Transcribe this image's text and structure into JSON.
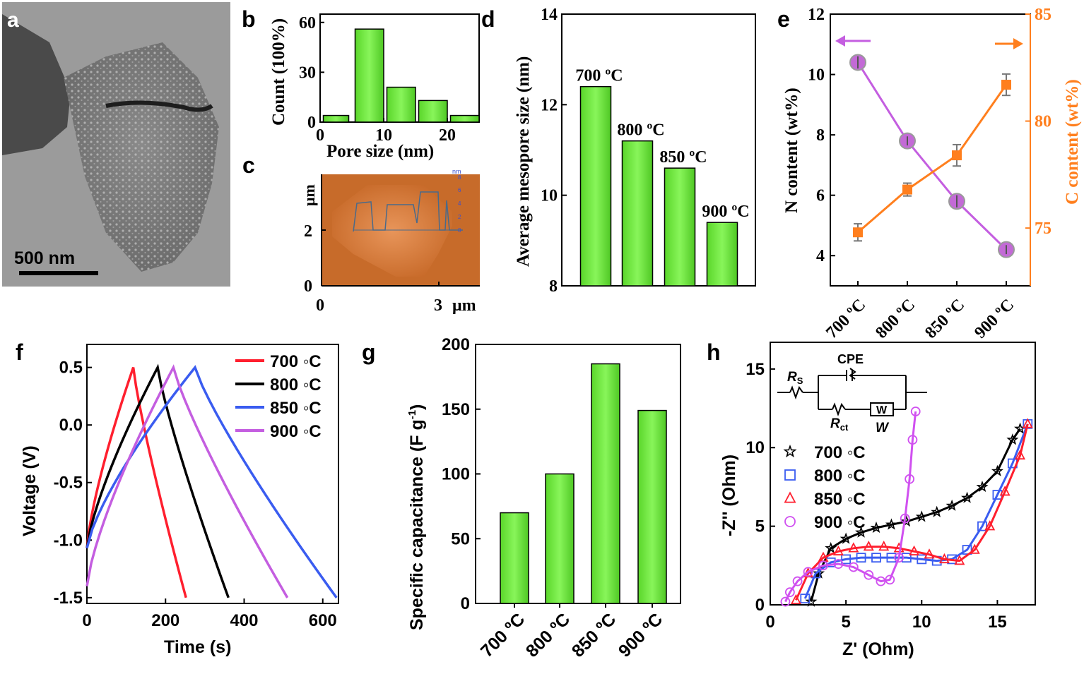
{
  "panels": {
    "a": {
      "letter": "a",
      "scale_label": "500 nm"
    },
    "b": {
      "letter": "b"
    },
    "c": {
      "letter": "c",
      "unit_nm": "nm",
      "xlabel_um": "μm",
      "ylabel_um": "μm",
      "xticks": [
        "0",
        "3"
      ],
      "yticks": [
        "0",
        "2"
      ],
      "profile_ticks": [
        "0",
        "2",
        "4",
        "6",
        "8"
      ]
    },
    "d": {
      "letter": "d"
    },
    "e": {
      "letter": "e"
    },
    "f": {
      "letter": "f"
    },
    "g": {
      "letter": "g"
    },
    "h": {
      "letter": "h"
    }
  },
  "circuit": {
    "rs": "R",
    "rs_sub": "S",
    "cpe": "CPE",
    "rct": "R",
    "rct_sub": "ct",
    "w": "W",
    "w_box": "W"
  },
  "colors": {
    "green": "#66ee33",
    "orange": "#ff7f1e",
    "purple": "#c45ee0",
    "red": "#ff1f2e",
    "black": "#000000",
    "blue": "#3a5cf0",
    "magenta": "#d050f0"
  },
  "chart_data": [
    {
      "id": "b",
      "type": "bar",
      "xlabel": "Pore size (nm)",
      "ylabel": "Count (100%)",
      "xlim": [
        0,
        25
      ],
      "ylim": [
        0,
        65
      ],
      "xticks": [
        0,
        10,
        20
      ],
      "yticks": [
        0,
        30,
        60
      ],
      "bins": [
        [
          0.5,
          4.5
        ],
        [
          5.5,
          10
        ],
        [
          10.5,
          15
        ],
        [
          15.5,
          20
        ],
        [
          20.5,
          25
        ]
      ],
      "values": [
        4,
        56,
        21,
        13,
        4
      ]
    },
    {
      "id": "d",
      "type": "bar",
      "ylabel": "Average mesopore size (nm)",
      "ylim": [
        8,
        14
      ],
      "yticks": [
        8,
        10,
        12,
        14
      ],
      "categories": [
        "700 ºC",
        "800 ºC",
        "850 ºC",
        "900 ºC"
      ],
      "values": [
        12.4,
        11.2,
        10.6,
        9.4
      ]
    },
    {
      "id": "e",
      "type": "line",
      "ylabel": "N content (wt%)",
      "y2label": "C content (wt%)",
      "ylim": [
        3,
        12
      ],
      "y2lim": [
        72.3,
        85
      ],
      "yticks": [
        4,
        6,
        8,
        10,
        12
      ],
      "y2ticks": [
        75,
        80,
        85
      ],
      "categories": [
        "700 ºC",
        "800 ºC",
        "850 ºC",
        "900 ºC"
      ],
      "series": [
        {
          "name": "N content",
          "axis": "left",
          "values": [
            10.4,
            7.8,
            5.8,
            4.2
          ],
          "errors": [
            0.2,
            0.15,
            0.2,
            0.15
          ]
        },
        {
          "name": "C content",
          "axis": "right",
          "values": [
            74.8,
            76.8,
            78.4,
            81.7
          ],
          "errors": [
            0.4,
            0.3,
            0.5,
            0.5
          ]
        }
      ]
    },
    {
      "id": "f",
      "type": "line",
      "xlabel": "Time (s)",
      "ylabel": "Voltage (V)",
      "xlim": [
        0,
        640
      ],
      "ylim": [
        -1.55,
        0.7
      ],
      "xticks": [
        0,
        200,
        400,
        600
      ],
      "yticks": [
        -1.5,
        -1.0,
        -0.5,
        0.0,
        0.5
      ],
      "ytick_labels": [
        "-1.5",
        "-1.0",
        "-0.5",
        "0.0",
        "0.5"
      ],
      "series": [
        {
          "name": "700 ◦C",
          "color": "#ff1f2e",
          "x": [
            0,
            118,
            252
          ],
          "y": [
            -1.07,
            0.5,
            -1.5
          ]
        },
        {
          "name": "800 ◦C",
          "color": "#000000",
          "x": [
            0,
            180,
            360
          ],
          "y": [
            -1.07,
            0.5,
            -1.5
          ]
        },
        {
          "name": "850 ◦C",
          "color": "#3a5cf0",
          "x": [
            0,
            275,
            635
          ],
          "y": [
            -1.07,
            0.5,
            -1.5
          ]
        },
        {
          "name": "900 ◦C",
          "color": "#c45ee0",
          "x": [
            0,
            220,
            510
          ],
          "y": [
            -1.4,
            0.5,
            -1.5
          ]
        }
      ]
    },
    {
      "id": "g",
      "type": "bar",
      "ylabel": "Specific capacitance (F g",
      "ylabel_sup": "-1",
      "ylabel_end": ")",
      "ylim": [
        0,
        200
      ],
      "yticks": [
        0,
        50,
        100,
        150,
        200
      ],
      "categories": [
        "700 ºC",
        "800 ºC",
        "850 ºC",
        "900 ºC"
      ],
      "values": [
        70,
        100,
        185,
        149
      ]
    },
    {
      "id": "h",
      "type": "scatter",
      "xlabel": "Z' (Ohm)",
      "ylabel": "-Z'' (Ohm)",
      "xlim": [
        0,
        17.5
      ],
      "ylim": [
        0,
        16.7
      ],
      "xticks": [
        0,
        5,
        10,
        15
      ],
      "yticks": [
        0,
        5,
        10,
        15
      ],
      "series": [
        {
          "name": "700 ◦C",
          "marker": "star",
          "color": "#000000",
          "x": [
            2.7,
            3.2,
            4,
            5,
            6,
            7,
            8,
            9,
            10,
            11,
            12,
            13,
            14,
            15,
            16,
            16.5
          ],
          "y": [
            0.2,
            2.0,
            3.6,
            4.2,
            4.6,
            4.9,
            5.1,
            5.3,
            5.6,
            5.9,
            6.3,
            6.8,
            7.5,
            8.5,
            10.5,
            11.2
          ]
        },
        {
          "name": "800 ◦C",
          "marker": "square",
          "color": "#3a5cf0",
          "x": [
            2.3,
            3,
            4,
            5,
            6,
            7,
            8,
            9,
            10,
            11,
            12,
            13,
            14,
            15,
            16,
            17
          ],
          "y": [
            0.4,
            2.0,
            2.7,
            2.9,
            3.0,
            3.0,
            3.0,
            3.0,
            2.9,
            2.8,
            2.9,
            3.5,
            5.0,
            7.0,
            9.0,
            11.5
          ]
        },
        {
          "name": "850 ◦C",
          "marker": "triangle",
          "color": "#ff1f2e",
          "x": [
            1.7,
            2.5,
            3.5,
            4.5,
            5.5,
            6.5,
            7.5,
            8.5,
            9.5,
            10.5,
            11.5,
            12.5,
            13.5,
            14.5,
            15.5,
            16.5,
            17
          ],
          "y": [
            0.3,
            2.0,
            3.0,
            3.4,
            3.6,
            3.7,
            3.7,
            3.6,
            3.4,
            3.2,
            2.9,
            2.8,
            3.5,
            5.0,
            7.2,
            9.5,
            11.5
          ]
        },
        {
          "name": "900 ◦C",
          "marker": "circle",
          "color": "#d050f0",
          "x": [
            1.0,
            1.3,
            1.8,
            2.5,
            3.5,
            4.5,
            5.5,
            6.5,
            7.3,
            7.9,
            8.5,
            8.9,
            9.2,
            9.4,
            9.6
          ],
          "y": [
            0.2,
            0.8,
            1.5,
            2.1,
            2.5,
            2.6,
            2.4,
            1.9,
            1.5,
            1.6,
            3.0,
            5.5,
            8.0,
            10.5,
            12.3
          ]
        }
      ]
    }
  ]
}
